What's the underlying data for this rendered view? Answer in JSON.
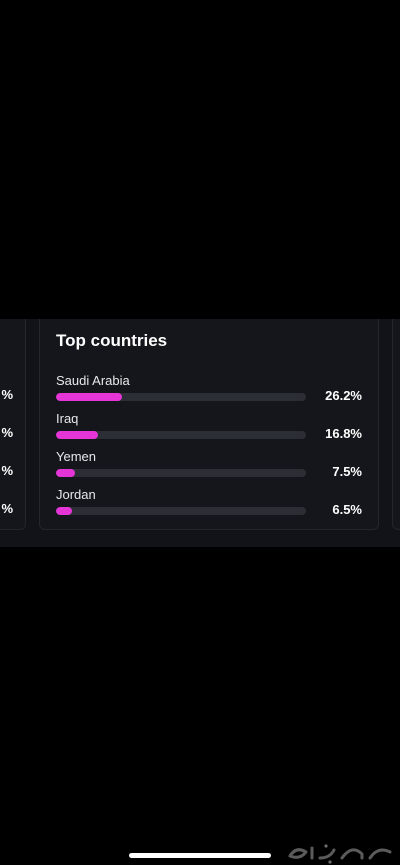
{
  "widget": {
    "title": "Top countries",
    "accent_color": "#e535d6",
    "track_color": "#2c2e35",
    "countries": [
      {
        "name": "Saudi Arabia",
        "value": "26.2%",
        "share": 26.2
      },
      {
        "name": "Iraq",
        "value": "16.8%",
        "share": 16.8
      },
      {
        "name": "Yemen",
        "value": "7.5%",
        "share": 7.5
      },
      {
        "name": "Jordan",
        "value": "6.5%",
        "share": 6.5
      }
    ]
  },
  "left_card": {
    "visible_suffixes": [
      "%",
      "%",
      "%",
      "%"
    ]
  },
  "watermark": {
    "text": "حراج",
    "icon": "haraj-logo-watermark"
  }
}
